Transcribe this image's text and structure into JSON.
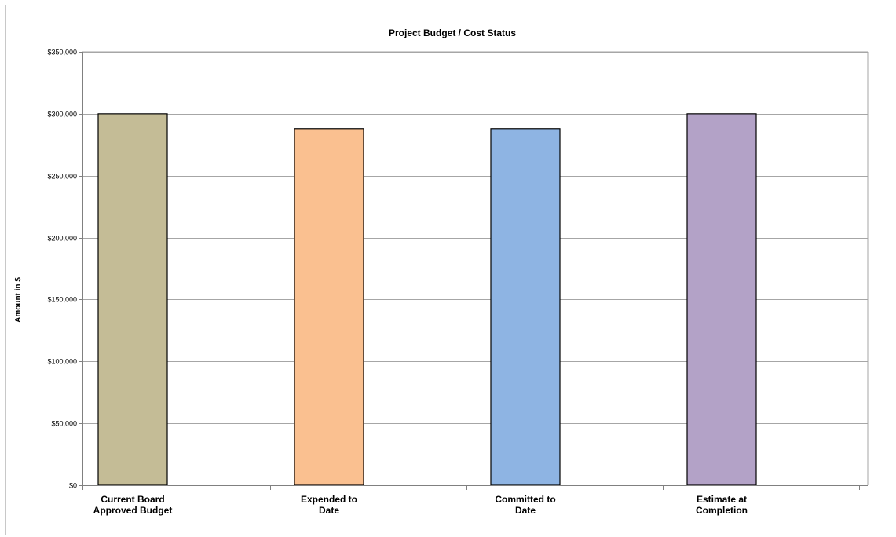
{
  "chart_data": {
    "type": "bar",
    "title": "Project Budget / Cost Status",
    "ylabel": "Amount in $",
    "xlabel": "",
    "categories": [
      [
        "Current Board",
        "Approved Budget"
      ],
      [
        "Expended  to",
        "Date"
      ],
      [
        "Committed to",
        "Date"
      ],
      [
        "Estimate at",
        "Completion"
      ]
    ],
    "values": [
      300000,
      288000,
      288000,
      300000
    ],
    "colors": [
      "#c4bc96",
      "#fac090",
      "#8eb4e3",
      "#b3a2c7"
    ],
    "ylim": [
      0,
      350000
    ],
    "yticks": [
      0,
      50000,
      100000,
      150000,
      200000,
      250000,
      300000,
      350000
    ],
    "ytick_labels": [
      "$0",
      "$50,000",
      "$100,000",
      "$150,000",
      "$200,000",
      "$250,000",
      "$300,000",
      "$350,000"
    ],
    "grid": true,
    "legend": "none"
  }
}
